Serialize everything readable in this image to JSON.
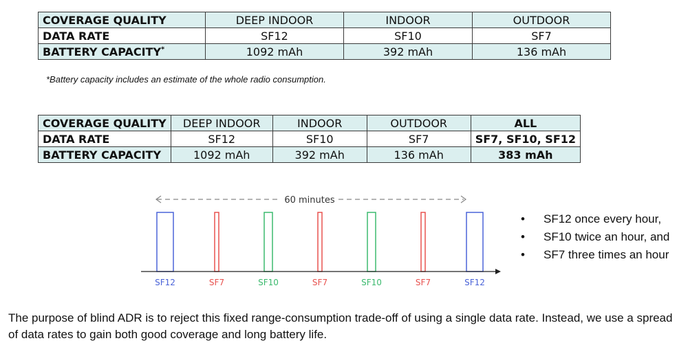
{
  "table1": {
    "rows": [
      [
        "COVERAGE QUALITY",
        "DEEP INDOOR",
        "INDOOR",
        "OUTDOOR"
      ],
      [
        "DATA RATE",
        "SF12",
        "SF10",
        "SF7"
      ],
      [
        "BATTERY CAPACITY",
        "1092 mAh",
        "392 mAh",
        "136 mAh"
      ]
    ],
    "footnote_marker": "*"
  },
  "footnote": "*Battery capacity includes an estimate of the whole radio consumption.",
  "table2": {
    "rows": [
      [
        "COVERAGE QUALITY",
        "DEEP INDOOR",
        "INDOOR",
        "OUTDOOR",
        "ALL"
      ],
      [
        "DATA RATE",
        "SF12",
        "SF10",
        "SF7",
        "SF7, SF10, SF12"
      ],
      [
        "BATTERY CAPACITY",
        "1092 mAh",
        "392 mAh",
        "136 mAh",
        "383 mAh"
      ]
    ]
  },
  "timeline": {
    "span_label": "60 minutes",
    "colors": {
      "SF12": "#4a63d8",
      "SF7": "#e8524f",
      "SF10": "#3cba6e",
      "axis": "#222222",
      "dash": "#888888"
    },
    "pulses": [
      {
        "label": "SF12",
        "time_min": 0
      },
      {
        "label": "SF7",
        "time_min": 10
      },
      {
        "label": "SF10",
        "time_min": 20
      },
      {
        "label": "SF7",
        "time_min": 30
      },
      {
        "label": "SF10",
        "time_min": 40
      },
      {
        "label": "SF7",
        "time_min": 50
      },
      {
        "label": "SF12",
        "time_min": 60
      }
    ]
  },
  "bullets": [
    "SF12 once every hour,",
    "SF10 twice an hour, and",
    "SF7 three times an hour"
  ],
  "paragraph": "The purpose of blind ADR is to reject this fixed range-consumption trade-off of using a single data rate. Instead, we use a spread of data rates to gain both good coverage and long battery life."
}
